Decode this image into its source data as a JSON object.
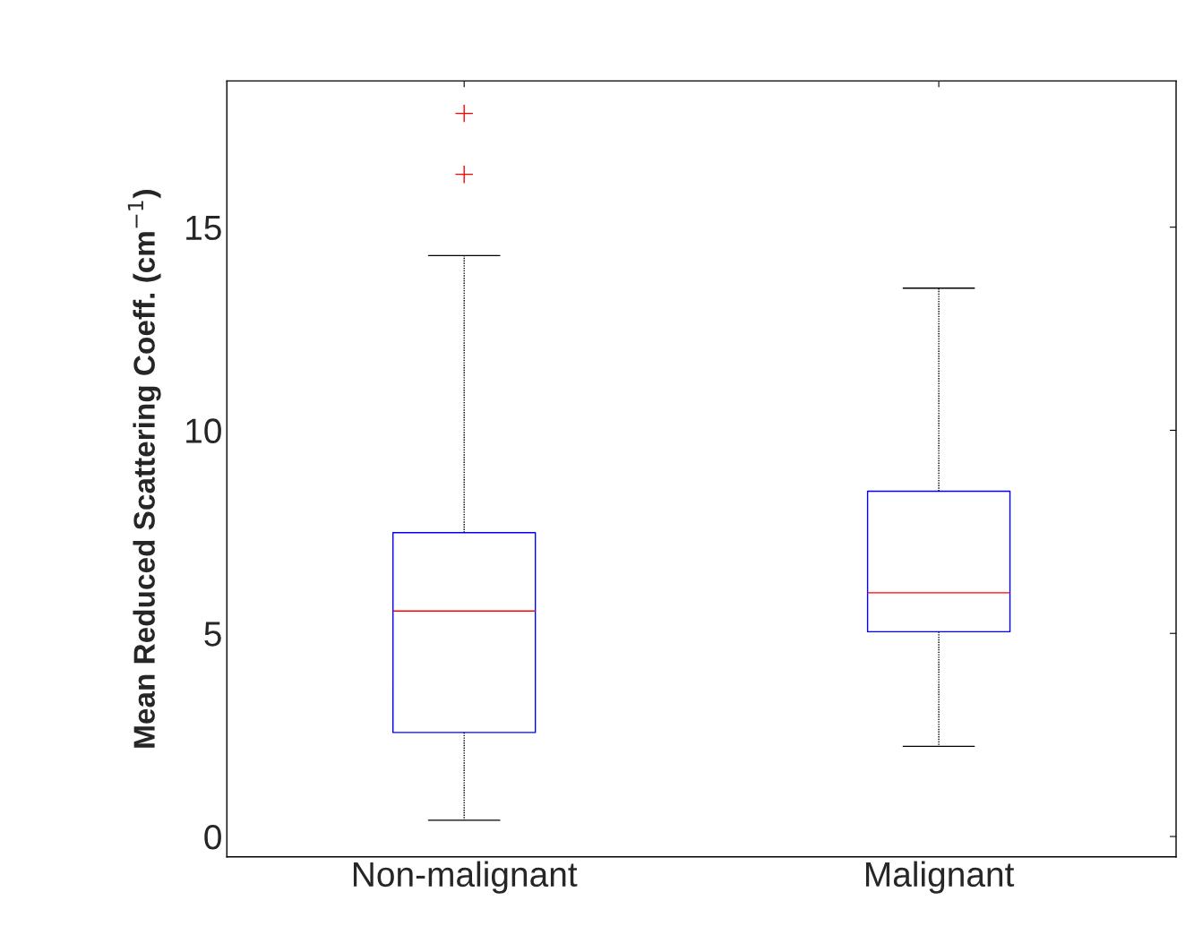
{
  "chart_data": {
    "type": "box",
    "ylabel": "Mean Reduced Scattering Coeff. (cm$^{−1}$)",
    "categories": [
      "Non-malignant",
      "Malignant"
    ],
    "boxes": [
      {
        "low": 0.4,
        "q1": 2.56,
        "median": 5.55,
        "q3": 7.48,
        "high": 14.3,
        "outliers": [
          17.8,
          16.3
        ]
      },
      {
        "low": 2.22,
        "q1": 5.04,
        "median": 6.0,
        "q3": 8.5,
        "high": 13.5
      }
    ],
    "ylim": [
      -0.5,
      18.6
    ],
    "yticks": [
      0,
      5,
      10,
      15
    ],
    "grid": false
  }
}
